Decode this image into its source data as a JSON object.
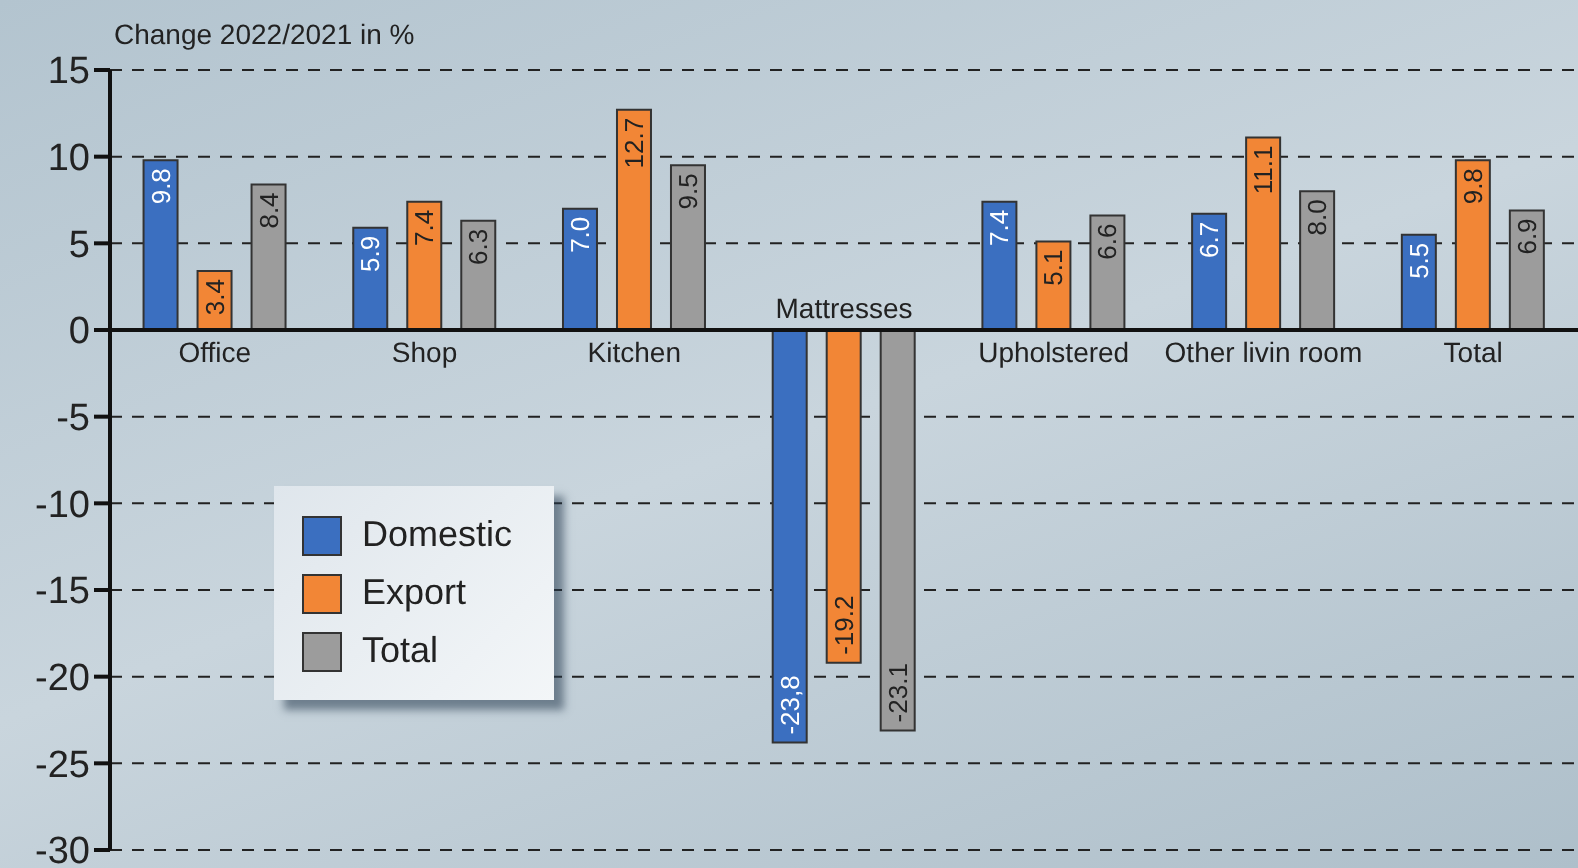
{
  "chart_data": {
    "type": "bar",
    "ylabel": "Change 2022/2021 in %",
    "categories": [
      "Office",
      "Shop",
      "Kitchen",
      "Mattresses",
      "Upholstered",
      "Other livin room",
      "Total"
    ],
    "series": [
      {
        "name": "Domestic",
        "color": "#3b6fc0",
        "values": [
          9.8,
          5.9,
          7.0,
          -23.8,
          7.4,
          6.7,
          5.5
        ],
        "value_labels": [
          "9.8",
          "5.9",
          "7.0",
          "-23,8",
          "7.4",
          "6.7",
          "5.5"
        ]
      },
      {
        "name": "Export",
        "color": "#f28636",
        "values": [
          3.4,
          7.4,
          12.7,
          -19.2,
          5.1,
          11.1,
          9.8
        ],
        "value_labels": [
          "3.4",
          "7.4",
          "12.7",
          "-19.2",
          "5.1",
          "11.1",
          "9.8"
        ]
      },
      {
        "name": "Total",
        "color": "#9c9c9c",
        "values": [
          8.4,
          6.3,
          9.5,
          -23.1,
          6.6,
          8.0,
          6.9
        ],
        "value_labels": [
          "8.4",
          "6.3",
          "9.5",
          "-23.1",
          "6.6",
          "8.0",
          "6.9"
        ]
      }
    ],
    "ylim": [
      -30,
      15
    ],
    "yticks": [
      15,
      10,
      5,
      0,
      -5,
      -10,
      -15,
      -20,
      -25,
      -30
    ],
    "grid": "y",
    "legend": "left"
  }
}
